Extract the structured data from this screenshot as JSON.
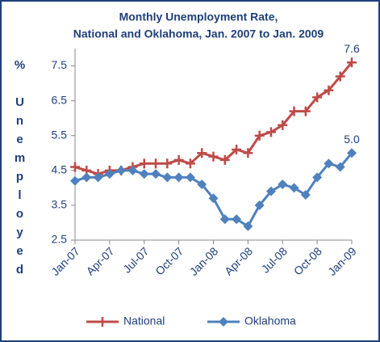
{
  "chart_data": {
    "type": "line",
    "title": [
      "Monthly Unemployment Rate,",
      "National and Oklahoma, Jan. 2007 to Jan. 2009"
    ],
    "y_label": "% Unemployed",
    "categories": [
      "Jan-07",
      null,
      null,
      "Apr-07",
      null,
      null,
      "Jul-07",
      null,
      null,
      "Oct-07",
      null,
      null,
      "Jan-08",
      null,
      null,
      "Apr-08",
      null,
      null,
      "Jul-08",
      null,
      null,
      "Oct-08",
      null,
      null,
      "Jan-09"
    ],
    "series": [
      {
        "name": "National",
        "color": "#be4b48",
        "marker": "plus",
        "values": [
          4.6,
          4.5,
          4.4,
          4.5,
          4.5,
          4.6,
          4.7,
          4.7,
          4.7,
          4.8,
          4.7,
          5.0,
          4.9,
          4.8,
          5.1,
          5.0,
          5.5,
          5.6,
          5.8,
          6.2,
          6.2,
          6.6,
          6.8,
          7.2,
          7.6
        ],
        "value_labels": [
          null,
          null,
          null,
          null,
          null,
          null,
          null,
          null,
          null,
          null,
          null,
          null,
          null,
          null,
          null,
          null,
          null,
          null,
          null,
          null,
          null,
          null,
          null,
          null,
          "7.6"
        ]
      },
      {
        "name": "Oklahoma",
        "color": "#4f81bd",
        "marker": "diamond",
        "values": [
          4.2,
          4.3,
          4.3,
          4.4,
          4.5,
          4.5,
          4.4,
          4.4,
          4.3,
          4.3,
          4.3,
          4.1,
          3.7,
          3.1,
          3.1,
          2.9,
          3.5,
          3.9,
          4.1,
          4.0,
          3.8,
          4.3,
          4.7,
          4.6,
          5.0
        ],
        "value_labels": [
          null,
          null,
          null,
          null,
          null,
          null,
          null,
          null,
          null,
          null,
          null,
          null,
          null,
          null,
          null,
          null,
          null,
          null,
          null,
          null,
          null,
          null,
          null,
          null,
          "5.0"
        ]
      }
    ],
    "ylim": [
      2.5,
      8
    ],
    "yticks": [
      2.5,
      3.5,
      4.5,
      5.5,
      6.5,
      7.5
    ],
    "legend": "bottom"
  }
}
